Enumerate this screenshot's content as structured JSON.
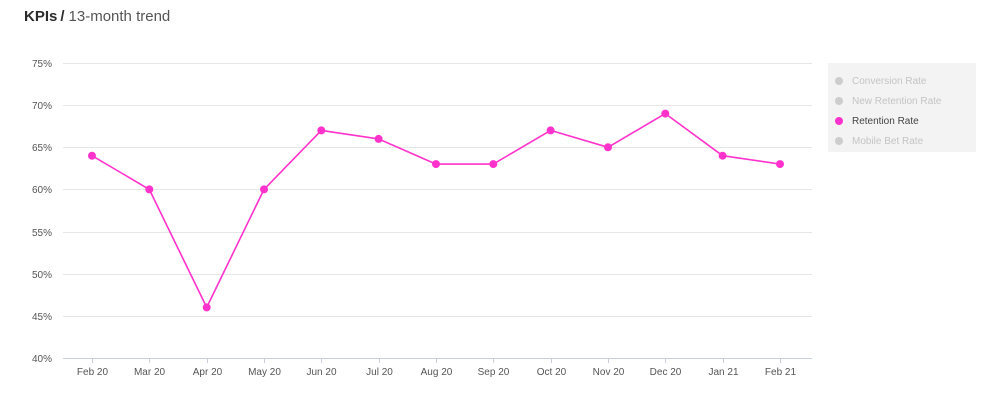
{
  "header": {
    "title": "KPIs",
    "separator": "/",
    "subtitle": "13-month trend"
  },
  "legend": {
    "items": [
      {
        "label": "Conversion Rate",
        "active": false,
        "color": "#cdcdcd"
      },
      {
        "label": "New Retention Rate",
        "active": false,
        "color": "#cdcdcd"
      },
      {
        "label": "Retention Rate",
        "active": true,
        "color": "#ff33cc"
      },
      {
        "label": "Mobile Bet Rate",
        "active": false,
        "color": "#cdcdcd"
      }
    ]
  },
  "chart_data": {
    "type": "line",
    "title": "",
    "xlabel": "",
    "ylabel": "",
    "categories": [
      "Feb 20",
      "Mar 20",
      "Apr 20",
      "May 20",
      "Jun 20",
      "Jul 20",
      "Aug 20",
      "Sep 20",
      "Oct 20",
      "Nov 20",
      "Dec 20",
      "Jan 21",
      "Feb 21"
    ],
    "series": [
      {
        "name": "Retention Rate",
        "color": "#ff33cc",
        "values": [
          64,
          60,
          46,
          60,
          67,
          66,
          63,
          63,
          67,
          65,
          69,
          64,
          63
        ]
      }
    ],
    "ylim": [
      40,
      75
    ],
    "yticks": [
      40,
      45,
      50,
      55,
      60,
      65,
      70,
      75
    ],
    "ytick_labels": [
      "40%",
      "45%",
      "50%",
      "55%",
      "60%",
      "65%",
      "70%",
      "75%"
    ],
    "grid": true,
    "legend_position": "right"
  }
}
